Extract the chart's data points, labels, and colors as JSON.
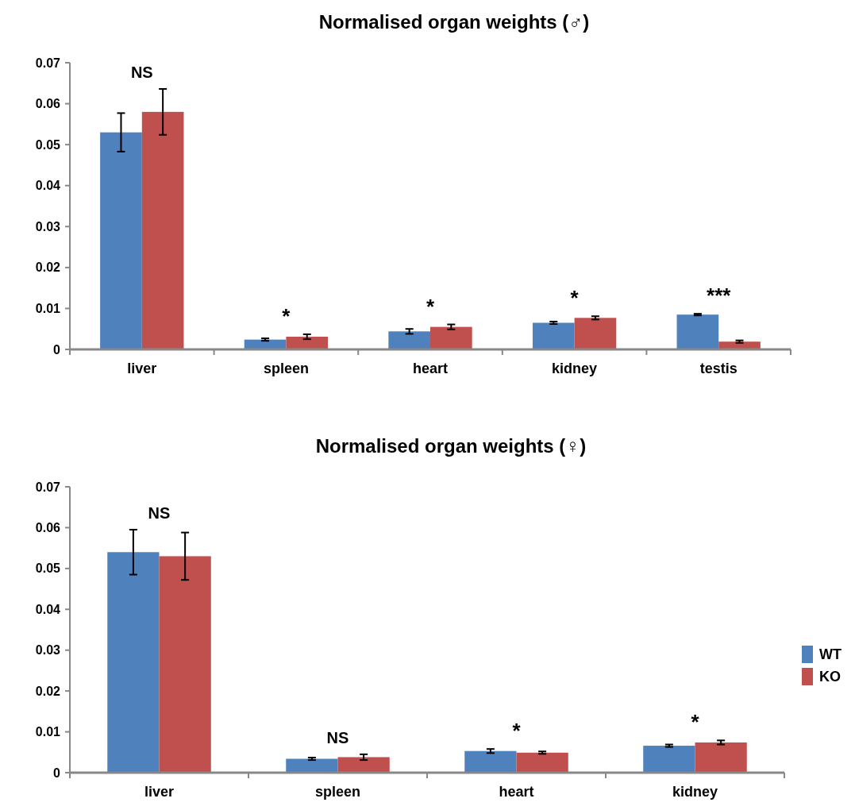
{
  "chart_data": [
    {
      "type": "bar",
      "title": "Normalised organ weights (♂)",
      "categories": [
        "liver",
        "spleen",
        "heart",
        "kidney",
        "testis"
      ],
      "series": [
        {
          "color": "#4f81bd",
          "values": [
            0.053,
            0.0024,
            0.0044,
            0.0065,
            0.0085
          ],
          "errors": [
            0.0047,
            0.0003,
            0.0006,
            0.0003,
            0.0002
          ]
        },
        {
          "color": "#c0504d",
          "values": [
            0.058,
            0.0031,
            0.0055,
            0.0077,
            0.0019
          ],
          "errors": [
            0.0056,
            0.0006,
            0.0006,
            0.0004,
            0.0003
          ]
        }
      ],
      "ylim": [
        0,
        0.07
      ],
      "yticks": [
        {
          "value": 0,
          "label": "0"
        },
        0.01,
        0.02,
        0.03,
        0.04,
        0.05,
        0.06,
        0.07
      ],
      "grid": false,
      "legend": false,
      "annotations": [
        "NS",
        "*",
        "*",
        "*",
        "***"
      ]
    },
    {
      "type": "bar",
      "title": "Normalised organ weights (♀)",
      "categories": [
        "liver",
        "spleen",
        "heart",
        "kidney"
      ],
      "series": [
        {
          "name": "WT",
          "color": "#4f81bd",
          "values": [
            0.054,
            0.0034,
            0.0053,
            0.0066
          ],
          "errors": [
            0.0055,
            0.0003,
            0.0005,
            0.0003
          ]
        },
        {
          "name": "KO",
          "color": "#c0504d",
          "values": [
            0.053,
            0.0038,
            0.0049,
            0.0074
          ],
          "errors": [
            0.0058,
            0.0007,
            0.0003,
            0.0005
          ]
        }
      ],
      "ylim": [
        0,
        0.07
      ],
      "yticks": [
        {
          "value": 0,
          "label": "0"
        },
        0.01,
        0.02,
        0.03,
        0.04,
        0.05,
        0.06,
        0.07
      ],
      "grid": false,
      "legend": "right",
      "annotations": [
        "NS",
        "NS",
        "*",
        "*"
      ]
    }
  ]
}
